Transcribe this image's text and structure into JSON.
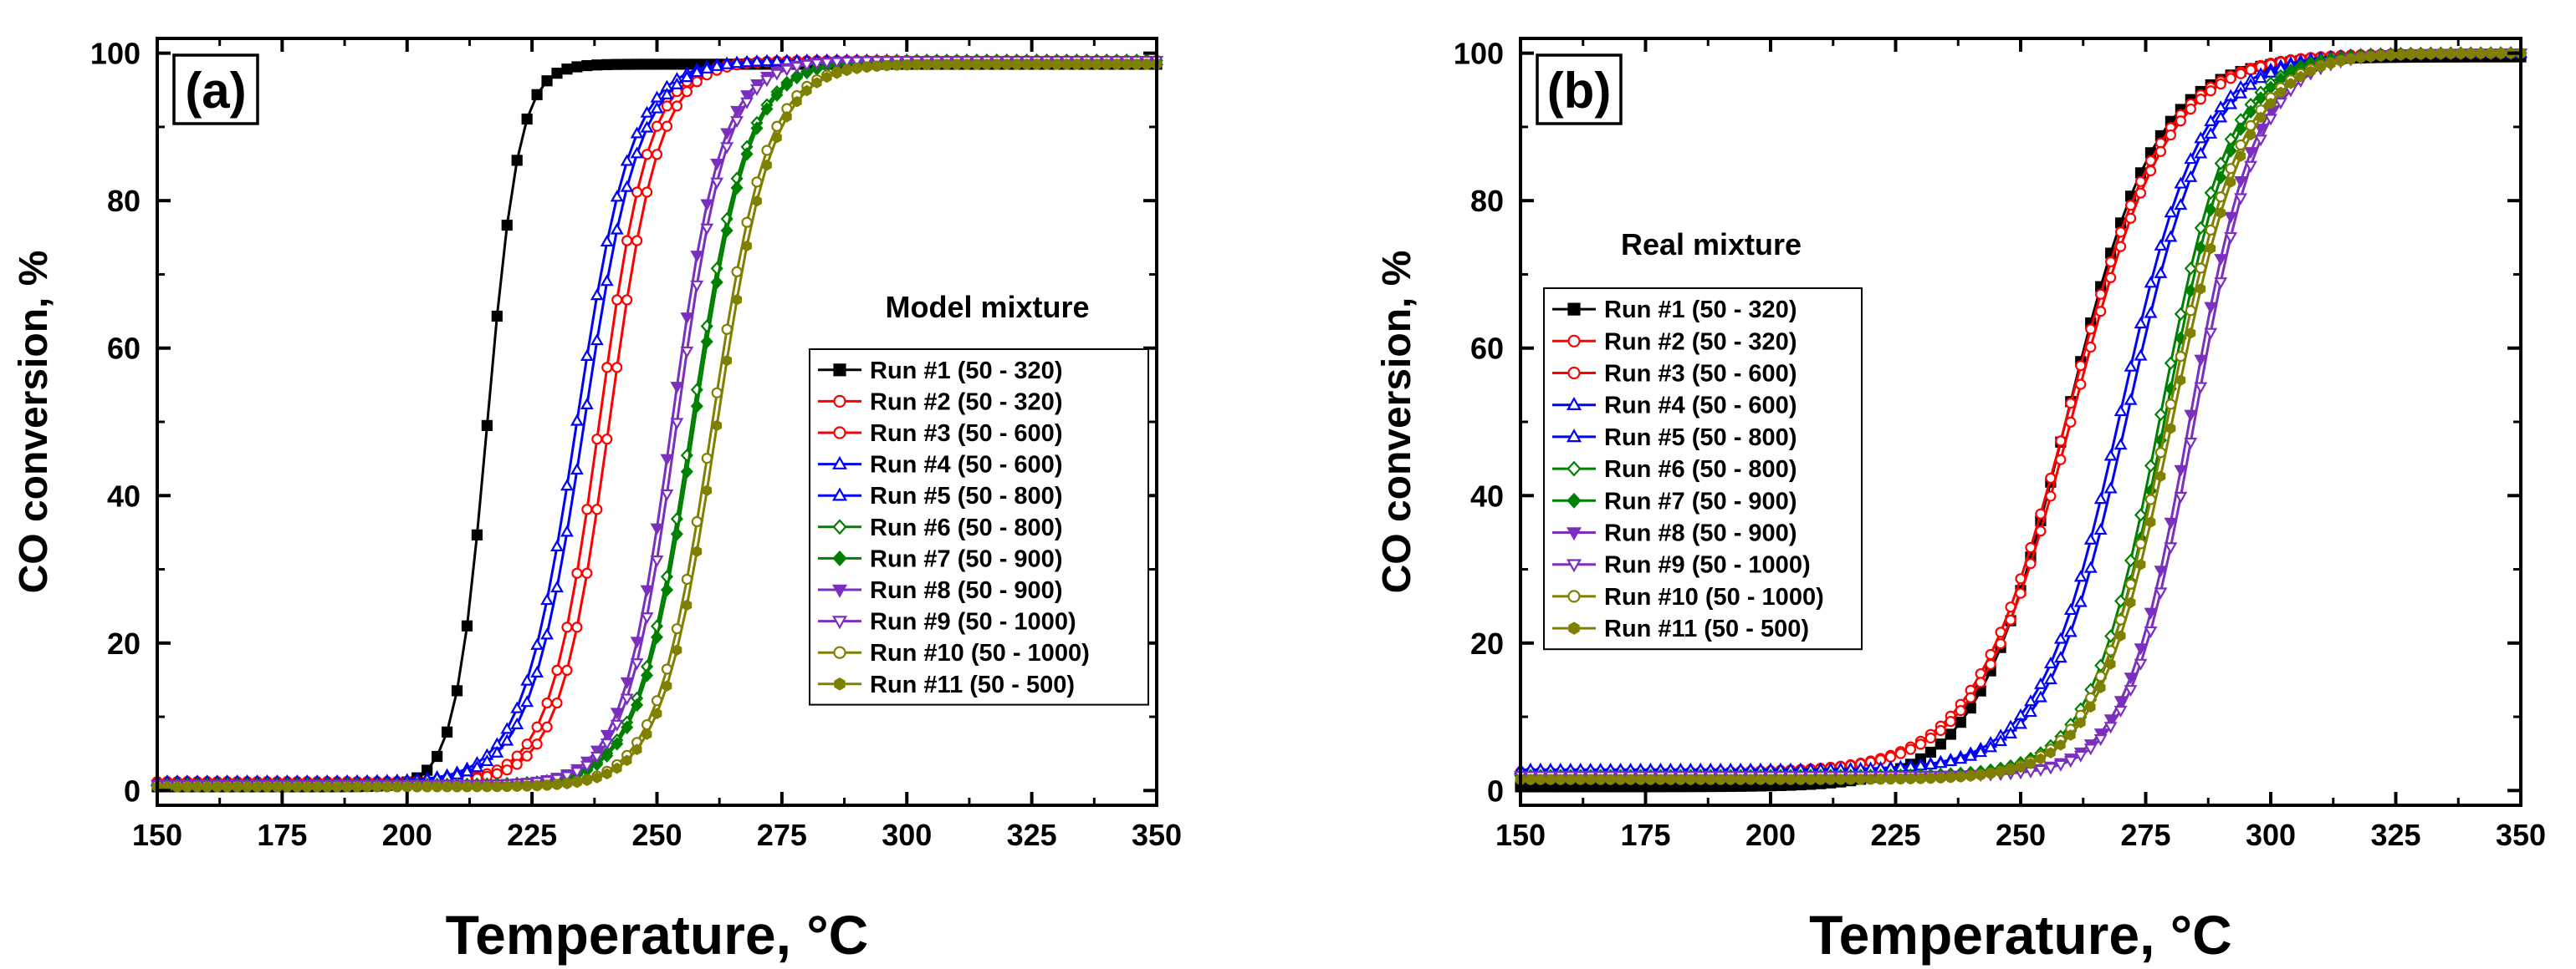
{
  "chart_data": [
    {
      "type": "line",
      "panel_label": "(a)",
      "xlabel": "Temperature, °C",
      "ylabel": "CO conversion, %",
      "xlim": [
        150,
        350
      ],
      "ylim": [
        -2,
        102
      ],
      "xticks": [
        150,
        175,
        200,
        225,
        250,
        275,
        300,
        325,
        350
      ],
      "yticks": [
        0,
        20,
        40,
        60,
        80,
        100
      ],
      "grid": false,
      "legend_title": "Model mixture",
      "legend_position": "lower-right",
      "series": [
        {
          "name": "Run #1 (50 - 320)",
          "color": "#000000",
          "marker": "square",
          "filled": true,
          "t50": 216,
          "width": 3.2,
          "base": 0.5,
          "plateau": 98.5
        },
        {
          "name": "Run #2 (50 - 320)",
          "color": "#ff0000",
          "marker": "circle",
          "filled": false,
          "t50": 238.5,
          "width": 5.0,
          "base": 1.2,
          "plateau": 99.0
        },
        {
          "name": "Run #3 (50 - 600)",
          "color": "#ff0000",
          "marker": "circle",
          "filled": false,
          "t50": 240.5,
          "width": 5.0,
          "base": 1.2,
          "plateau": 99.0
        },
        {
          "name": "Run #4 (50 - 600)",
          "color": "#0000ff",
          "marker": "triangle-up",
          "filled": false,
          "t50": 234.0,
          "width": 5.5,
          "base": 1.2,
          "plateau": 99.0
        },
        {
          "name": "Run #5 (50 - 800)",
          "color": "#0000ff",
          "marker": "triangle-up",
          "filled": false,
          "t50": 235.5,
          "width": 5.5,
          "base": 1.2,
          "plateau": 99.0
        },
        {
          "name": "Run #6 (50 - 800)",
          "color": "#008000",
          "marker": "diamond",
          "filled": false,
          "t50": 257.0,
          "width": 5.5,
          "base": 0.8,
          "plateau": 99.0
        },
        {
          "name": "Run #7 (50 - 900)",
          "color": "#008000",
          "marker": "diamond",
          "filled": true,
          "t50": 257.5,
          "width": 5.5,
          "base": 0.8,
          "plateau": 99.0
        },
        {
          "name": "Run #8 (50 - 900)",
          "color": "#7b2fbe",
          "marker": "triangle-down",
          "filled": true,
          "t50": 253.0,
          "width": 5.0,
          "base": 0.8,
          "plateau": 99.0
        },
        {
          "name": "Run #9 (50 - 1000)",
          "color": "#7b2fbe",
          "marker": "triangle-down",
          "filled": false,
          "t50": 254.0,
          "width": 5.0,
          "base": 0.8,
          "plateau": 99.0
        },
        {
          "name": "Run #10 (50 - 1000)",
          "color": "#808000",
          "marker": "circle",
          "filled": false,
          "t50": 261.0,
          "width": 5.5,
          "base": 0.5,
          "plateau": 98.5
        },
        {
          "name": "Run #11 (50 - 500)",
          "color": "#808000",
          "marker": "hexagon",
          "filled": true,
          "t50": 262.0,
          "width": 5.5,
          "base": 0.5,
          "plateau": 98.5
        }
      ]
    },
    {
      "type": "line",
      "panel_label": "(b)",
      "xlabel": "Temperature, °C",
      "ylabel": "CO conversion, %",
      "xlim": [
        150,
        350
      ],
      "ylim": [
        -2,
        102
      ],
      "xticks": [
        150,
        175,
        200,
        225,
        250,
        275,
        300,
        325,
        350
      ],
      "yticks": [
        0,
        20,
        40,
        60,
        80,
        100
      ],
      "grid": false,
      "legend_title": "Real mixture",
      "legend_position": "center-left",
      "series": [
        {
          "name": "Run #1 (50 - 320)",
          "color": "#000000",
          "marker": "square",
          "filled": true,
          "t50": 259.0,
          "width": 9.0,
          "base": 0.5,
          "plateau": 99.5
        },
        {
          "name": "Run #2 (50 - 320)",
          "color": "#ff0000",
          "marker": "circle",
          "filled": false,
          "t50": 259.5,
          "width": 9.5,
          "base": 2.5,
          "plateau": 100
        },
        {
          "name": "Run #3 (50 - 600)",
          "color": "#ff0000",
          "marker": "circle",
          "filled": false,
          "t50": 260.5,
          "width": 9.5,
          "base": 2.5,
          "plateau": 100
        },
        {
          "name": "Run #4 (50 - 600)",
          "color": "#0000ff",
          "marker": "triangle-up",
          "filled": false,
          "t50": 270.0,
          "width": 8.0,
          "base": 2.8,
          "plateau": 100
        },
        {
          "name": "Run #5 (50 - 800)",
          "color": "#0000ff",
          "marker": "triangle-up",
          "filled": false,
          "t50": 271.5,
          "width": 8.0,
          "base": 2.8,
          "plateau": 100
        },
        {
          "name": "Run #6 (50 - 800)",
          "color": "#008000",
          "marker": "diamond",
          "filled": false,
          "t50": 278.0,
          "width": 7.0,
          "base": 2.0,
          "plateau": 100
        },
        {
          "name": "Run #7 (50 - 900)",
          "color": "#008000",
          "marker": "diamond",
          "filled": true,
          "t50": 279.0,
          "width": 7.0,
          "base": 2.0,
          "plateau": 100
        },
        {
          "name": "Run #8 (50 - 900)",
          "color": "#7b2fbe",
          "marker": "triangle-down",
          "filled": true,
          "t50": 284.0,
          "width": 6.5,
          "base": 2.0,
          "plateau": 100
        },
        {
          "name": "Run #9 (50 - 1000)",
          "color": "#7b2fbe",
          "marker": "triangle-down",
          "filled": false,
          "t50": 285.0,
          "width": 6.5,
          "base": 2.0,
          "plateau": 100
        },
        {
          "name": "Run #10 (50 - 1000)",
          "color": "#808000",
          "marker": "circle",
          "filled": false,
          "t50": 279.5,
          "width": 7.5,
          "base": 1.5,
          "plateau": 100
        },
        {
          "name": "Run #11 (50 - 500)",
          "color": "#808000",
          "marker": "hexagon",
          "filled": true,
          "t50": 280.5,
          "width": 7.5,
          "base": 1.5,
          "plateau": 100
        }
      ]
    }
  ]
}
